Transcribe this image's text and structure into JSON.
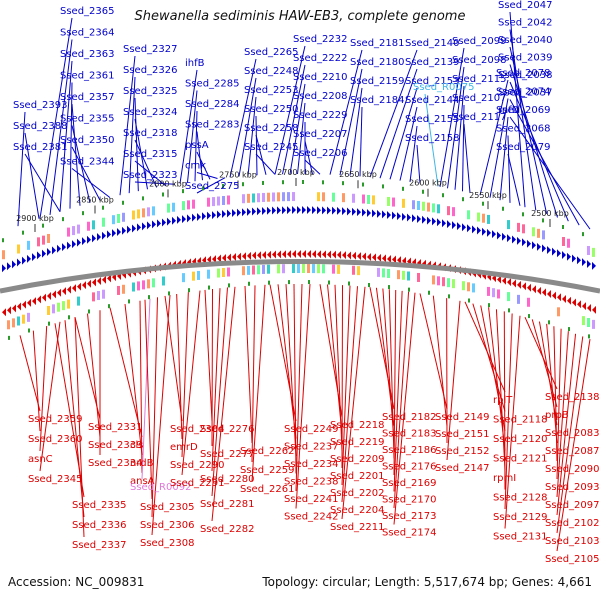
{
  "title": "Shewanella sediminis HAW-EB3, complete genome",
  "footer": {
    "accession": "Accession: NC_009831",
    "summary": "Topology: circular; Length: 5,517,674 bp; Genes: 4,661"
  },
  "kbp_ticks": [
    {
      "label": "2900 kbp"
    },
    {
      "label": "2850 kbp"
    },
    {
      "label": "2800 kbp"
    },
    {
      "label": "2750 kbp"
    },
    {
      "label": "2700 kbp"
    },
    {
      "label": "2650 kbp"
    },
    {
      "label": "2600 kbp"
    },
    {
      "label": "2550 kbp"
    },
    {
      "label": "2500 kbp"
    }
  ],
  "colors": {
    "forward": "#0000cc",
    "reverse": "#dd0000",
    "rna_forward": "#3fb6e6",
    "rna_reverse": "#e07ad8",
    "backbone": "#8a8a8a",
    "gc_tick": "#2a9a2a"
  },
  "forward_labels": [
    {
      "text": "Ssed_2365"
    },
    {
      "text": "Ssed_2364"
    },
    {
      "text": "Ssed_2363"
    },
    {
      "text": "Ssed_2361"
    },
    {
      "text": "Ssed_2357"
    },
    {
      "text": "Ssed_2355"
    },
    {
      "text": "Ssed_2350"
    },
    {
      "text": "Ssed_2344"
    },
    {
      "text": "Ssed_2393"
    },
    {
      "text": "Ssed_2388"
    },
    {
      "text": "Ssed_2381"
    },
    {
      "text": "Ssed_2327"
    },
    {
      "text": "Ssed_2326"
    },
    {
      "text": "Ssed_2325"
    },
    {
      "text": "Ssed_2324"
    },
    {
      "text": "Ssed_2318"
    },
    {
      "text": "Ssed_2315"
    },
    {
      "text": "Ssed_2323"
    },
    {
      "text": "ihfB"
    },
    {
      "text": "Ssed_2285"
    },
    {
      "text": "Ssed_2284"
    },
    {
      "text": "Ssed_2283"
    },
    {
      "text": "pssA"
    },
    {
      "text": "cmk"
    },
    {
      "text": "Ssed_2275"
    },
    {
      "text": "Ssed_2265"
    },
    {
      "text": "Ssed_2248"
    },
    {
      "text": "Ssed_2253"
    },
    {
      "text": "Ssed_2250"
    },
    {
      "text": "Ssed_2258"
    },
    {
      "text": "Ssed_2245"
    },
    {
      "text": "Ssed_2232"
    },
    {
      "text": "Ssed_2222"
    },
    {
      "text": "Ssed_2210"
    },
    {
      "text": "Ssed_2208"
    },
    {
      "text": "Ssed_2229"
    },
    {
      "text": "Ssed_2207"
    },
    {
      "text": "Ssed_2206"
    },
    {
      "text": "Ssed_2181"
    },
    {
      "text": "Ssed_2180"
    },
    {
      "text": "Ssed_2159"
    },
    {
      "text": "Ssed_2184"
    },
    {
      "text": "Ssed_2140"
    },
    {
      "text": "Ssed_2139"
    },
    {
      "text": "Ssed_2153"
    },
    {
      "text": "Ssed_2144"
    },
    {
      "text": "Ssed_2155"
    },
    {
      "text": "Ssed_2158"
    },
    {
      "text": "Ssed_R0075",
      "rna": true
    },
    {
      "text": "Ssed_2099"
    },
    {
      "text": "Ssed_2098"
    },
    {
      "text": "Ssed_2115"
    },
    {
      "text": "Ssed_2107"
    },
    {
      "text": "Ssed_2117"
    },
    {
      "text": "Ssed_2078"
    },
    {
      "text": "Ssed_2074"
    },
    {
      "text": "Ssed_2069"
    },
    {
      "text": "Ssed_2068"
    },
    {
      "text": "Ssed_2079"
    },
    {
      "text": "Ssed_2047"
    },
    {
      "text": "Ssed_2042"
    },
    {
      "text": "Ssed_2040"
    },
    {
      "text": "Ssed_2039"
    },
    {
      "text": "Ssed_2038"
    },
    {
      "text": "Ssed_2037"
    },
    {
      "text": "rnfD"
    }
  ],
  "reverse_labels": [
    {
      "text": "Ssed_2359"
    },
    {
      "text": "Ssed_2360"
    },
    {
      "text": "asnC"
    },
    {
      "text": "Ssed_2345"
    },
    {
      "text": "Ssed_2335"
    },
    {
      "text": "Ssed_2336"
    },
    {
      "text": "Ssed_2337"
    },
    {
      "text": "Ssed_2331"
    },
    {
      "text": "Ssed_2339"
    },
    {
      "text": "Ssed_2334"
    },
    {
      "text": "cls"
    },
    {
      "text": "nrdB"
    },
    {
      "text": "ansA"
    },
    {
      "text": "Ssed_R0092",
      "rna": true
    },
    {
      "text": "Ssed_2305"
    },
    {
      "text": "Ssed_2306"
    },
    {
      "text": "Ssed_2308"
    },
    {
      "text": "Ssed_2304"
    },
    {
      "text": "emrD"
    },
    {
      "text": "Ssed_2290"
    },
    {
      "text": "Ssed_2291"
    },
    {
      "text": "Ssed_2276"
    },
    {
      "text": "Ssed_2277"
    },
    {
      "text": "Ssed_2280"
    },
    {
      "text": "Ssed_2281"
    },
    {
      "text": "Ssed_2282"
    },
    {
      "text": "Ssed_2262"
    },
    {
      "text": "Ssed_2259"
    },
    {
      "text": "Ssed_2261"
    },
    {
      "text": "Ssed_2249"
    },
    {
      "text": "Ssed_2237"
    },
    {
      "text": "Ssed_2234"
    },
    {
      "text": "Ssed_2238"
    },
    {
      "text": "Ssed_2241"
    },
    {
      "text": "Ssed_2242"
    },
    {
      "text": "Ssed_2218"
    },
    {
      "text": "Ssed_2219"
    },
    {
      "text": "Ssed_2209"
    },
    {
      "text": "Ssed_2201"
    },
    {
      "text": "Ssed_2202"
    },
    {
      "text": "Ssed_2204"
    },
    {
      "text": "Ssed_2211"
    },
    {
      "text": "Ssed_2182"
    },
    {
      "text": "Ssed_2183"
    },
    {
      "text": "Ssed_2186"
    },
    {
      "text": "Ssed_2176"
    },
    {
      "text": "Ssed_2169"
    },
    {
      "text": "Ssed_2170"
    },
    {
      "text": "Ssed_2173"
    },
    {
      "text": "Ssed_2174"
    },
    {
      "text": "Ssed_2149"
    },
    {
      "text": "Ssed_2151"
    },
    {
      "text": "Ssed_2152"
    },
    {
      "text": "Ssed_2147"
    },
    {
      "text": "rplT"
    },
    {
      "text": "Ssed_2118"
    },
    {
      "text": "Ssed_2120"
    },
    {
      "text": "Ssed_2121"
    },
    {
      "text": "rpmI"
    },
    {
      "text": "Ssed_2128"
    },
    {
      "text": "Ssed_2129"
    },
    {
      "text": "Ssed_2131"
    },
    {
      "text": "Ssed_2138"
    },
    {
      "text": "prpB"
    },
    {
      "text": "Ssed_2083"
    },
    {
      "text": "Ssed_2087"
    },
    {
      "text": "Ssed_2090"
    },
    {
      "text": "Ssed_2093"
    },
    {
      "text": "Ssed_2097"
    },
    {
      "text": "Ssed_2102"
    },
    {
      "text": "Ssed_2103"
    },
    {
      "text": "Ssed_2105"
    },
    {
      "text": "Ssed_2108"
    }
  ]
}
